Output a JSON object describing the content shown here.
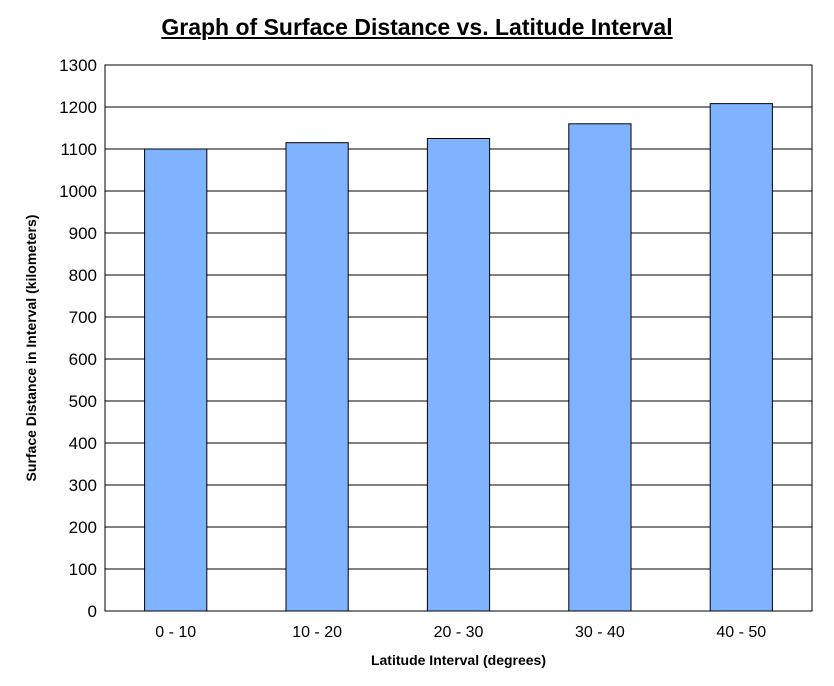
{
  "chart_data": {
    "type": "bar",
    "title": "Graph of Surface Distance vs. Latitude Interval",
    "xlabel": "Latitude Interval (degrees)",
    "ylabel": "Surface Distance in Interval (kilometers)",
    "categories": [
      "0 - 10",
      "10 - 20",
      "20 - 30",
      "30 - 40",
      "40 - 50"
    ],
    "values": [
      1100,
      1115,
      1125,
      1160,
      1208
    ],
    "ylim": [
      0,
      1300
    ],
    "yticks": [
      "0",
      "100",
      "200",
      "300",
      "400",
      "500",
      "600",
      "700",
      "800",
      "900",
      "1000",
      "1100",
      "1200",
      "1300"
    ],
    "grid": true,
    "legend": "none",
    "colors": {
      "bar": "#80b3ff",
      "bar_stroke": "#000000",
      "grid": "#000000"
    }
  }
}
